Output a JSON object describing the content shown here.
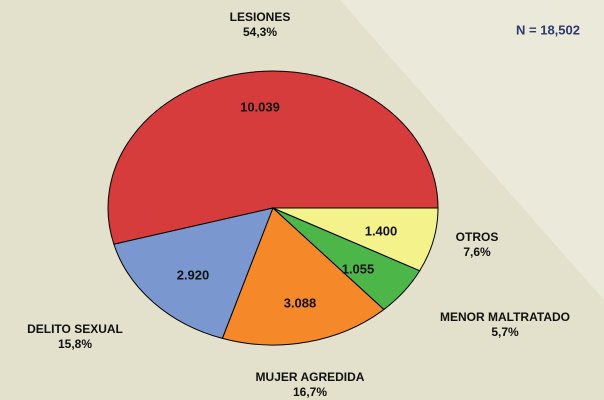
{
  "chart_data": {
    "type": "pie",
    "annotation": "N = 18,502",
    "categories": [
      "LESIONES",
      "DELITO SEXUAL",
      "MUJER AGREDIDA",
      "MENOR MALTRATADO",
      "OTROS"
    ],
    "values": [
      10039,
      2920,
      3088,
      1055,
      1400
    ],
    "value_labels": [
      "10.039",
      "2.920",
      "3.088",
      "1.055",
      "1.400"
    ],
    "percentages": [
      54.3,
      15.8,
      16.7,
      5.7,
      7.6
    ],
    "percentage_labels": [
      "54,3%",
      "15,8%",
      "16,7%",
      "5,7%",
      "7,6%"
    ],
    "colors": [
      "#d63c3c",
      "#7b97cf",
      "#f5892a",
      "#4cb648",
      "#f4f28a"
    ]
  }
}
